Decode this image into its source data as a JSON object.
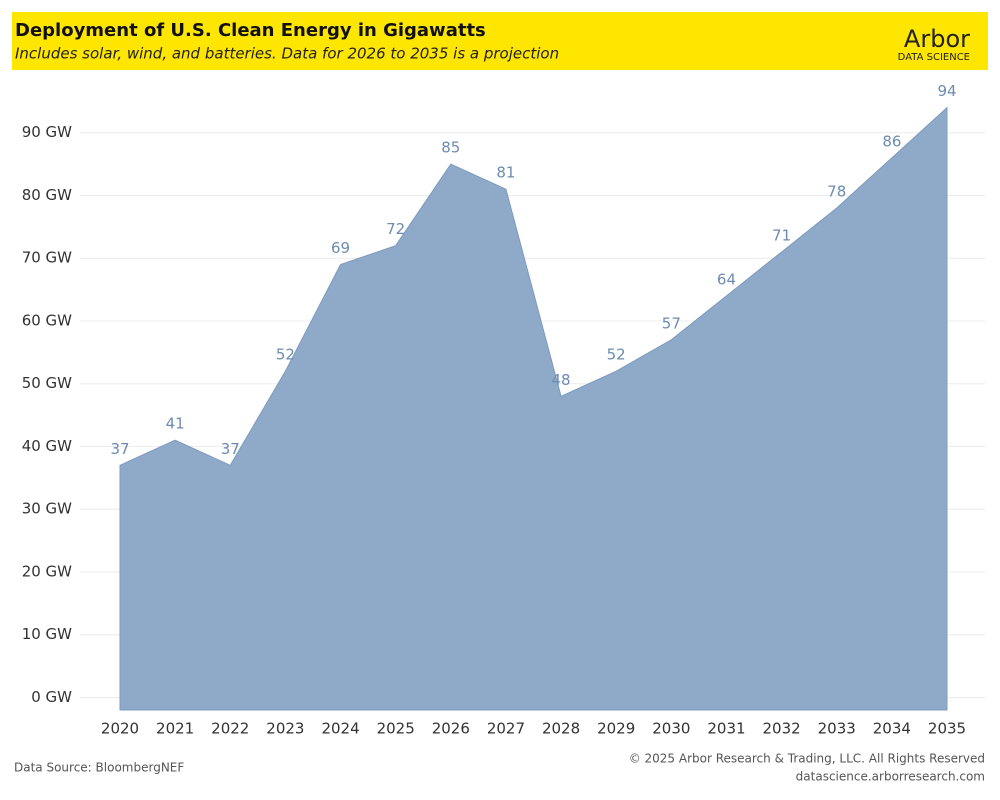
{
  "chart_data": {
    "type": "area",
    "title": "Deployment of U.S. Clean Energy in Gigawatts",
    "subtitle": "Includes solar, wind, and batteries. Data for 2026 to 2035 is a projection",
    "categories": [
      "2020",
      "2021",
      "2022",
      "2023",
      "2024",
      "2025",
      "2026",
      "2027",
      "2028",
      "2029",
      "2030",
      "2031",
      "2032",
      "2033",
      "2034",
      "2035"
    ],
    "values": [
      37,
      41,
      37,
      52,
      69,
      72,
      85,
      81,
      48,
      52,
      57,
      64,
      71,
      78,
      86,
      94
    ],
    "color": "#8fa9c8",
    "ylim": [
      -2,
      100
    ],
    "yticks": [
      {
        "value": 0,
        "label": "0 GW"
      },
      {
        "value": 10,
        "label": "10 GW"
      },
      {
        "value": 20,
        "label": "20 GW"
      },
      {
        "value": 30,
        "label": "30 GW"
      },
      {
        "value": 40,
        "label": "40 GW"
      },
      {
        "value": 50,
        "label": "50 GW"
      },
      {
        "value": 60,
        "label": "60 GW"
      },
      {
        "value": 70,
        "label": "70 GW"
      },
      {
        "value": 80,
        "label": "80 GW"
      },
      {
        "value": 90,
        "label": "90 GW"
      }
    ],
    "grid": true
  },
  "branding": {
    "logo": "Arbor",
    "logo_sub": "DATA SCIENCE"
  },
  "footer": {
    "source": "Data Source: BloombergNEF",
    "copyright": "© 2025 Arbor Research & Trading, LLC. All Rights Reserved",
    "website": "datascience.arborresearch.com"
  }
}
